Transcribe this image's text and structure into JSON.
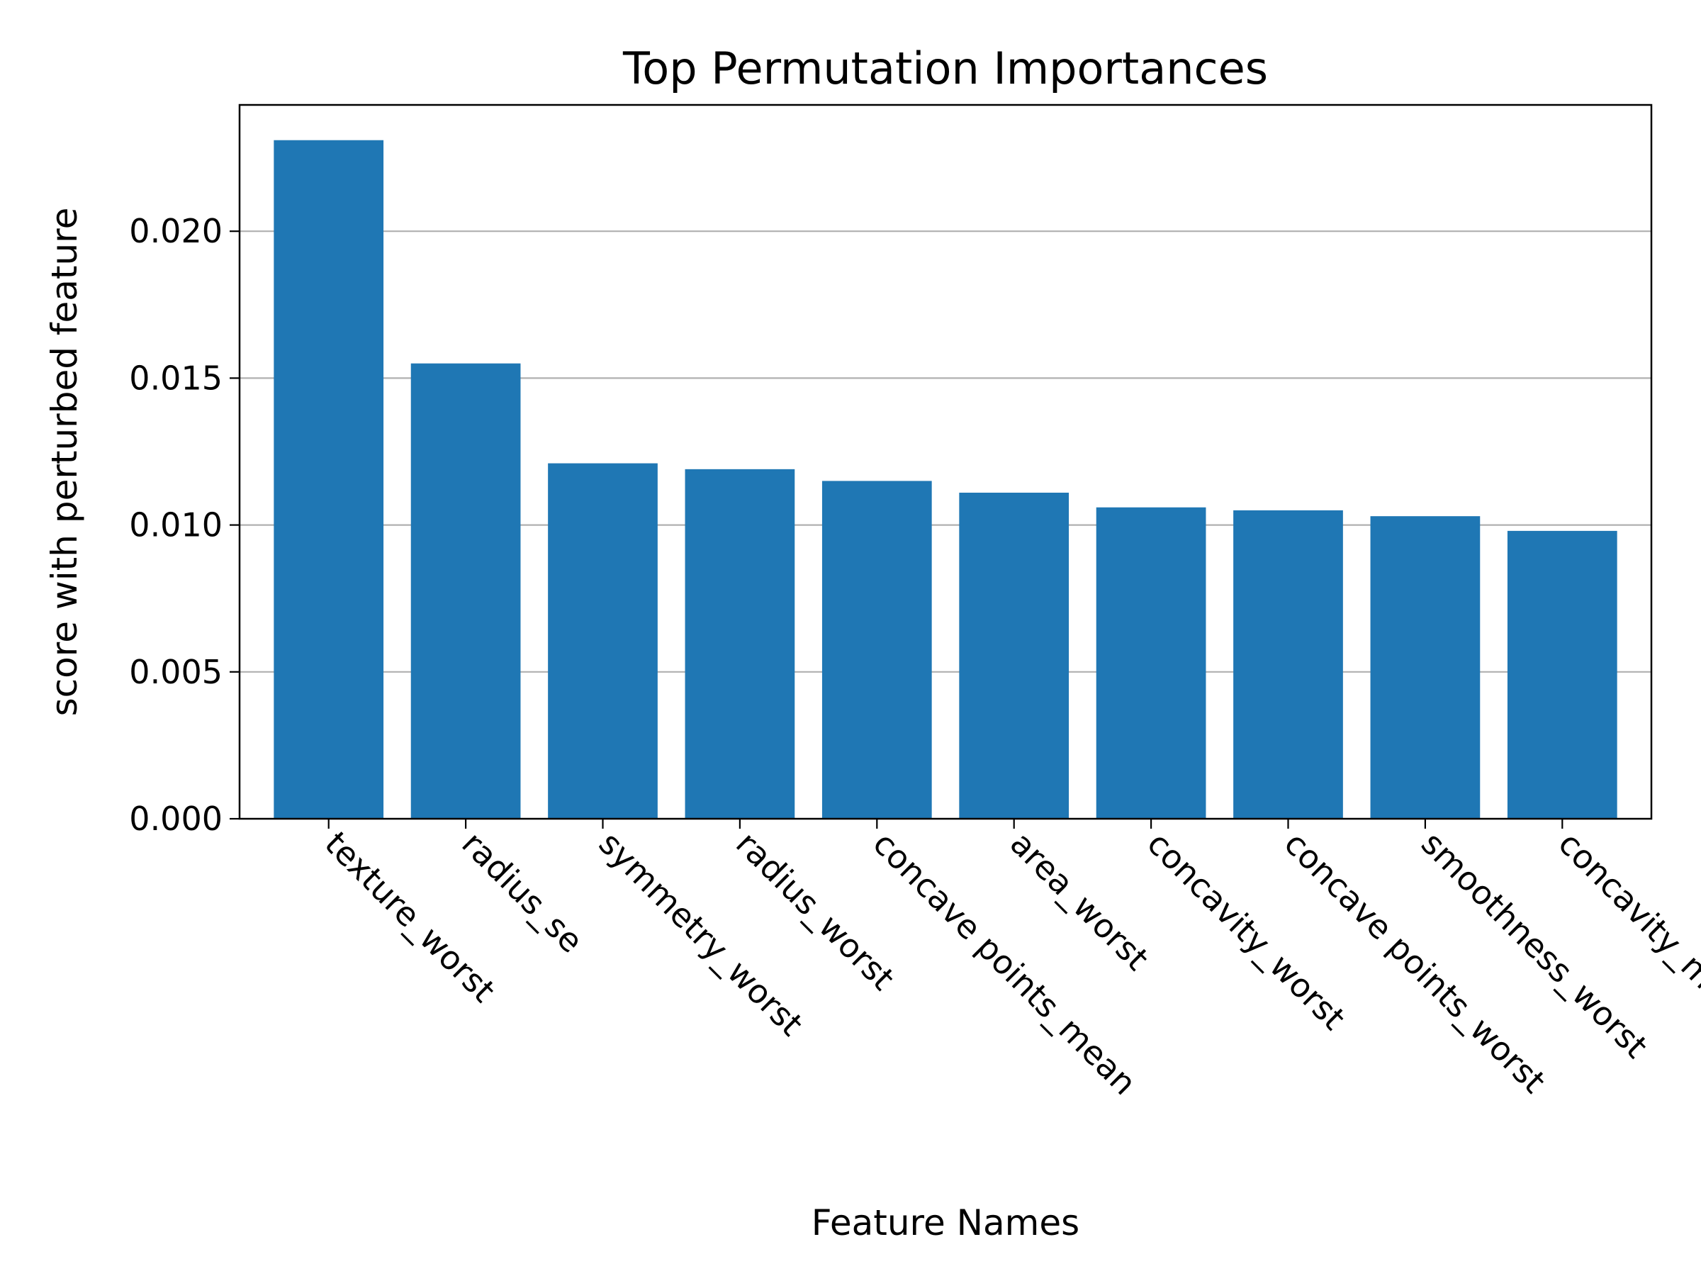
{
  "chart_data": {
    "type": "bar",
    "title": "Top Permutation Importances",
    "xlabel": "Feature Names",
    "ylabel": "score with perturbed feature",
    "categories": [
      "texture_worst",
      "radius_se",
      "symmetry_worst",
      "radius_worst",
      "concave points_mean",
      "area_worst",
      "concavity_worst",
      "concave points_worst",
      "smoothness_worst",
      "concavity_mean"
    ],
    "values": [
      0.0231,
      0.0155,
      0.0121,
      0.0119,
      0.0115,
      0.0111,
      0.0106,
      0.0105,
      0.0103,
      0.0098
    ],
    "ylim": [
      0,
      0.0243
    ],
    "yticks": [
      0.0,
      0.005,
      0.01,
      0.015,
      0.02
    ],
    "ytick_labels": [
      "0.000",
      "0.005",
      "0.010",
      "0.015",
      "0.020"
    ],
    "grid": "y",
    "bar_color": "#1f77b4",
    "grid_color": "#b0b0b0"
  }
}
